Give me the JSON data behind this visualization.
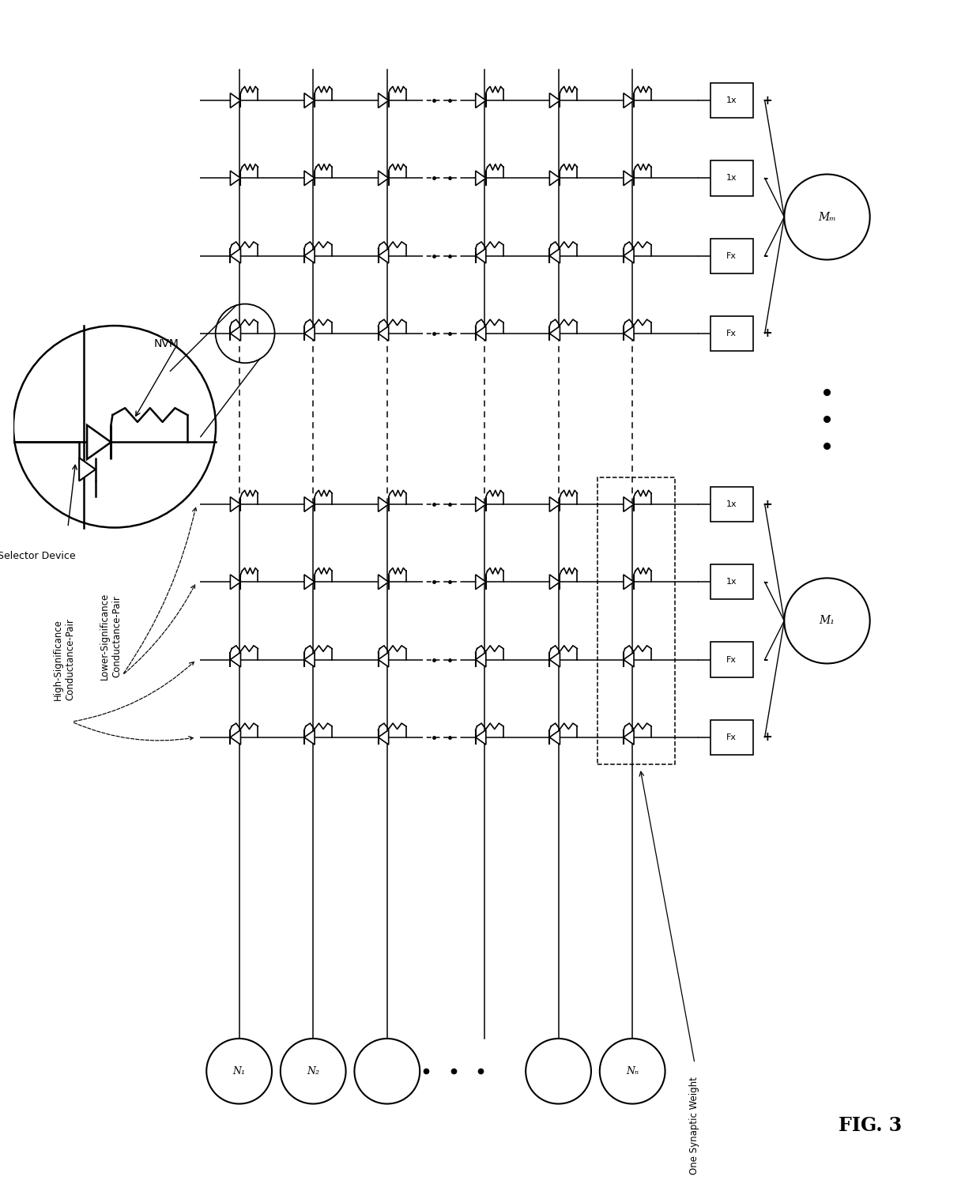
{
  "title": "FIG. 3",
  "background_color": "#ffffff",
  "fig_width": 12.4,
  "fig_height": 14.98,
  "nvm_label": "NVM",
  "selector_label": "Selector Device",
  "high_sig_label": "High-Significance\nConductance-Pair",
  "low_sig_label": "Lower-Significance\nConductance-Pair",
  "one_synaptic_label": "One Synaptic Weight",
  "node_labels": [
    "N₁",
    "N₂",
    "Nₙ"
  ],
  "M1_label": "M₁",
  "Mm_label": "Mₘ",
  "m1_box_labels": [
    "Fx",
    "Fx",
    "1x",
    "1x"
  ],
  "mm_box_labels": [
    "Fx",
    "Fx",
    "1x",
    "1x"
  ],
  "m1_pol": [
    "+",
    "-",
    "-",
    "+"
  ],
  "mm_pol": [
    "+",
    "-",
    "-",
    "+"
  ]
}
